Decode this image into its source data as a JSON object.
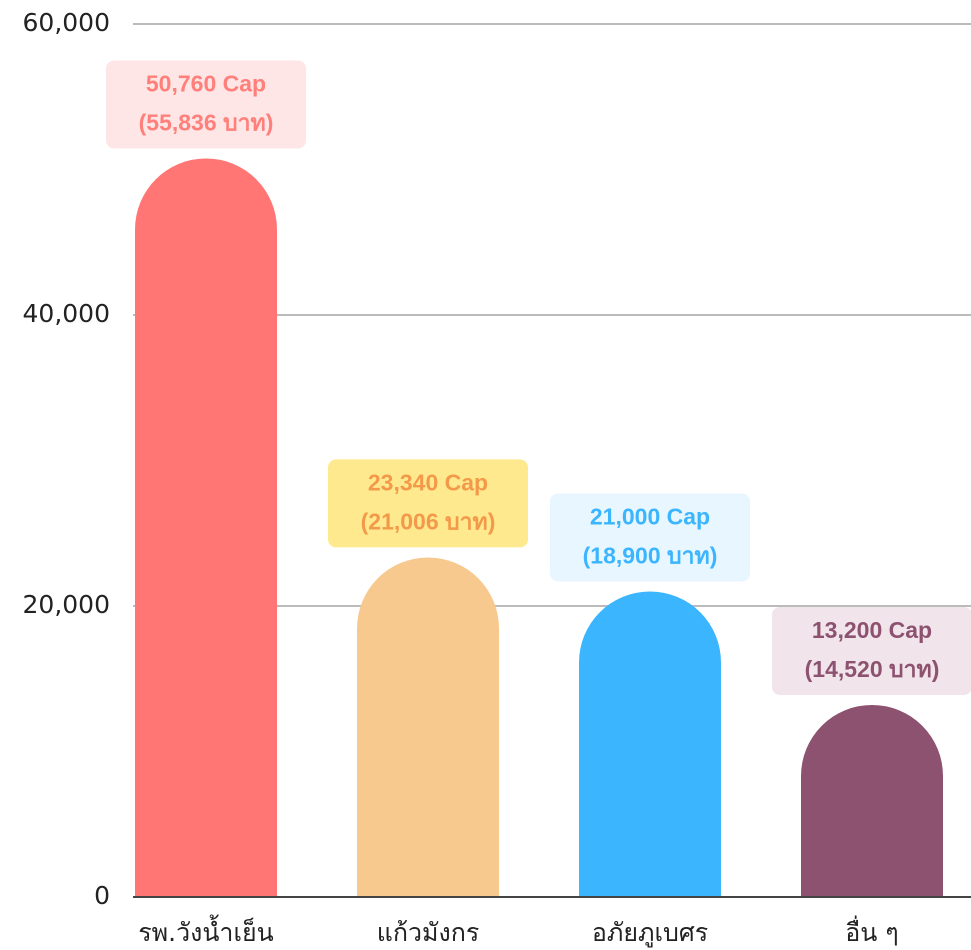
{
  "chart_data": {
    "type": "bar",
    "categories": [
      "รพ.วังน้ำเย็น",
      "แก้วมังกร",
      "อภัยภูเบศร",
      "อื่น ๆ"
    ],
    "values": [
      50760,
      23340,
      21000,
      13200
    ],
    "value_labels": [
      "50,760 Cap",
      "23,340 Cap",
      "21,000 Cap",
      "13,200 Cap"
    ],
    "baht_labels": [
      "(55,836 บาท)",
      "(21,006 บาท)",
      "(18,900 บาท)",
      "(14,520 บาท)"
    ],
    "colors": [
      "#ff7675",
      "#f7c98e",
      "#3bb5fd",
      "#8c5270"
    ],
    "label_colors": [
      "#ff7f7a",
      "#f39a4a",
      "#3bb5fd",
      "#8c5270"
    ],
    "label_backgrounds": [
      "#ffe6e6",
      "#ffe98f",
      "#e8f6ff",
      "#f1e4ea"
    ],
    "ylim": [
      0,
      60000
    ],
    "yticks": [
      0,
      {
        "value": 20000,
        "label": "20,000"
      },
      {
        "value": 40000,
        "label": "40,000"
      },
      {
        "value": 60000,
        "label": "60,000"
      }
    ],
    "grid": true
  }
}
